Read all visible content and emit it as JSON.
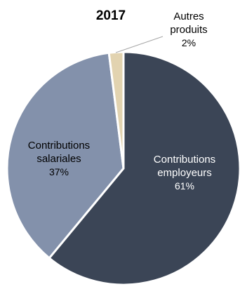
{
  "chart_data": {
    "type": "pie",
    "title": "2017",
    "slices": [
      {
        "label_lines": [
          "Contributions",
          "employeurs"
        ],
        "value": 61,
        "value_label": "61%",
        "color": "#3b4556",
        "text_color": "#ffffff"
      },
      {
        "label_lines": [
          "Contributions",
          "salariales"
        ],
        "value": 37,
        "value_label": "37%",
        "color": "#8391ab",
        "text_color": "#000000"
      },
      {
        "label_lines": [
          "Autres",
          "produits"
        ],
        "value": 2,
        "value_label": "2%",
        "color": "#e2d3b0",
        "text_color": "#000000"
      }
    ],
    "start_angle_deg": 0,
    "direction": "clockwise",
    "slice_border_color": "#ffffff",
    "legend": "none"
  }
}
